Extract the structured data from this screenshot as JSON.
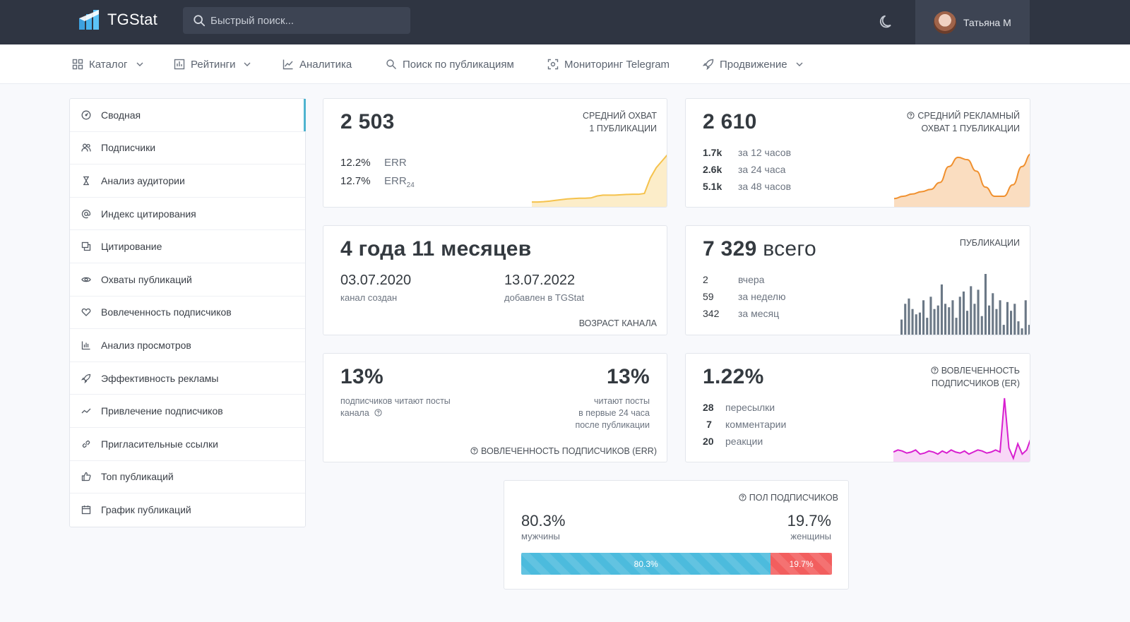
{
  "header": {
    "logo_text": "TGStat",
    "search_placeholder": "Быстрый поиск...",
    "user_name": "Татьяна М"
  },
  "nav": [
    {
      "label": "Каталог",
      "icon": "grid-icon",
      "dropdown": true
    },
    {
      "label": "Рейтинги",
      "icon": "bar-chart-icon",
      "dropdown": true
    },
    {
      "label": "Аналитика",
      "icon": "line-chart-icon",
      "dropdown": false
    },
    {
      "label": "Поиск по публикациям",
      "icon": "search-doc-icon",
      "dropdown": false
    },
    {
      "label": "Мониторинг Telegram",
      "icon": "monitor-icon",
      "dropdown": false
    },
    {
      "label": "Продвижение",
      "icon": "rocket-icon",
      "dropdown": true
    }
  ],
  "sidebar": {
    "items": [
      {
        "label": "Сводная",
        "icon": "dashboard-icon"
      },
      {
        "label": "Подписчики",
        "icon": "users-icon"
      },
      {
        "label": "Анализ аудитории",
        "icon": "hourglass-icon"
      },
      {
        "label": "Индекс цитирования",
        "icon": "at-icon"
      },
      {
        "label": "Цитирование",
        "icon": "quote-icon"
      },
      {
        "label": "Охваты публикаций",
        "icon": "eye-icon"
      },
      {
        "label": "Вовлеченность подписчиков",
        "icon": "heart-icon"
      },
      {
        "label": "Анализ просмотров",
        "icon": "bar-chart-icon"
      },
      {
        "label": "Эффективность рекламы",
        "icon": "rocket-icon"
      },
      {
        "label": "Привлечение подписчиков",
        "icon": "trend-icon"
      },
      {
        "label": "Пригласительные ссылки",
        "icon": "link-icon"
      },
      {
        "label": "Топ публикаций",
        "icon": "thumb-up-icon"
      },
      {
        "label": "График публикаций",
        "icon": "calendar-icon"
      }
    ]
  },
  "cards": {
    "reach": {
      "value": "2 503",
      "caption_1": "СРЕДНИЙ ОХВАТ",
      "caption_2": "1 ПУБЛИКАЦИИ",
      "err_value": "12.2%",
      "err_label": "ERR",
      "err24_value": "12.7%",
      "err24_label": "ERR",
      "err24_sub": "24",
      "color": "#f5c24c",
      "chart": [
        2,
        2,
        2.2,
        2.5,
        3,
        3.4,
        3.8,
        4,
        4.2,
        4.2,
        4.4,
        5.5,
        6,
        6,
        6,
        6.2,
        6.4,
        6.5,
        6.5,
        7,
        16,
        22,
        26,
        30
      ]
    },
    "ad_reach": {
      "value": "2 610",
      "caption_1": "СРЕДНИЙ РЕКЛАМНЫЙ",
      "caption_2": "ОХВАТ 1 ПУБЛИКАЦИИ",
      "rows": [
        {
          "value": "1.7k",
          "label": "за 12 часов"
        },
        {
          "value": "2.6k",
          "label": "за 24 часа"
        },
        {
          "value": "5.1k",
          "label": "за 48 часов"
        }
      ],
      "color": "#f0902e",
      "chart": [
        6,
        8,
        10,
        12,
        14,
        20,
        34,
        42,
        40,
        30,
        16,
        8,
        8,
        18,
        34,
        45
      ]
    },
    "age": {
      "value": "4 года 11 месяцев",
      "created_date": "03.07.2020",
      "created_label": "канал создан",
      "added_date": "13.07.2022",
      "added_label": "добавлен в TGStat",
      "caption": "ВОЗРАСТ КАНАЛА"
    },
    "posts": {
      "value": "7 329",
      "value_suffix": "всего",
      "caption": "ПУБЛИКАЦИИ",
      "rows": [
        {
          "value": "2",
          "label": "вчера"
        },
        {
          "value": "59",
          "label": "за неделю"
        },
        {
          "value": "342",
          "label": "за месяц"
        }
      ],
      "color": "#6b7886",
      "chart": [
        9,
        18,
        21,
        15,
        12,
        13,
        20,
        10,
        22,
        15,
        17,
        29,
        18,
        16,
        20,
        10,
        22,
        25,
        14,
        28,
        18,
        26,
        11,
        35,
        17,
        24,
        15,
        20,
        6,
        19,
        14,
        18,
        8,
        4,
        20,
        6
      ]
    },
    "err": {
      "left_value": "13%",
      "left_label_1": "подписчиков читают посты",
      "left_label_2": "канала",
      "right_value": "13%",
      "right_label_1": "читают посты",
      "right_label_2": "в первые 24 часа",
      "right_label_3": "после публикации",
      "caption": "ВОВЛЕЧЕННОСТЬ ПОДПИСЧИКОВ (ERR)"
    },
    "er": {
      "value": "1.22%",
      "caption_1": "ВОВЛЕЧЕННОСТЬ",
      "caption_2": "ПОДПИСЧИКОВ (ER)",
      "rows": [
        {
          "value": "28",
          "label": "пересылки"
        },
        {
          "value": "7",
          "label": "комментарии"
        },
        {
          "value": "20",
          "label": "реакции"
        }
      ],
      "color": "#d81fd0",
      "chart": [
        8,
        10,
        9,
        7,
        8,
        10,
        6,
        7,
        9,
        8,
        6,
        9,
        7,
        10,
        8,
        7,
        9,
        6,
        8,
        10,
        9,
        7,
        8,
        10,
        8,
        60,
        12,
        2,
        16,
        6,
        10,
        22
      ]
    },
    "gender": {
      "caption": "ПОЛ ПОДПИСЧИКОВ",
      "male_value": "80.3%",
      "male_label": "мужчины",
      "female_value": "19.7%",
      "female_label": "женщины",
      "male_share": 80.3,
      "female_share": 19.7,
      "male_color": "#4cbbdd",
      "female_color": "#f25e5e"
    }
  }
}
